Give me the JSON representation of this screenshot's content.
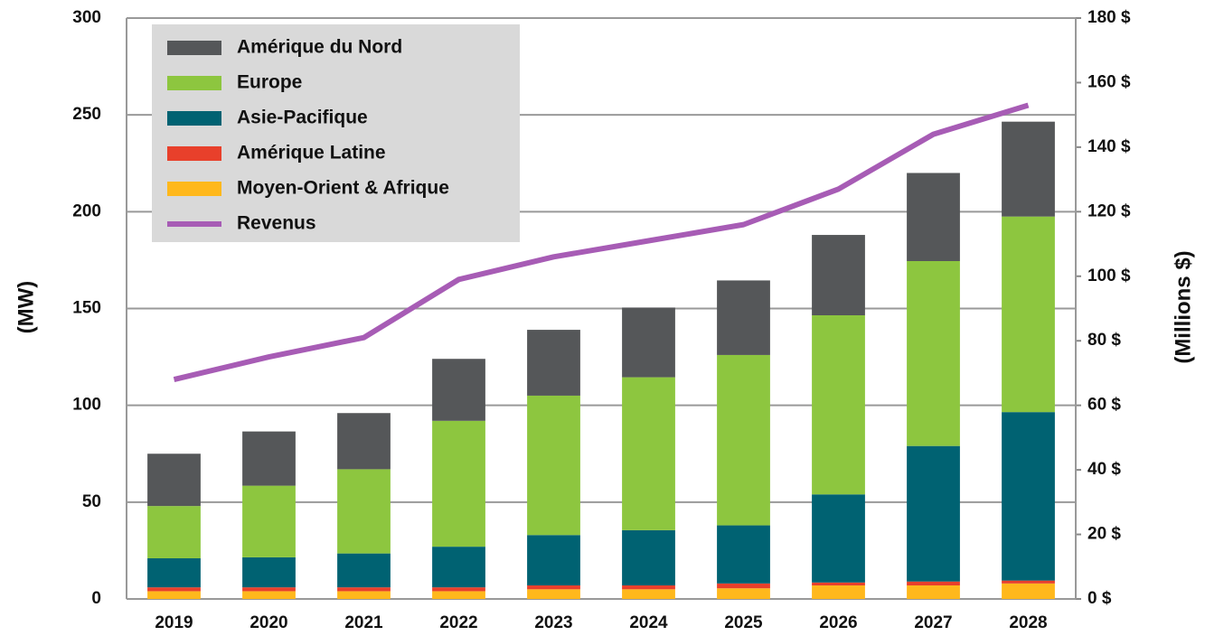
{
  "chart_data": {
    "type": "stacked-bar-line",
    "categories": [
      "2019",
      "2020",
      "2021",
      "2022",
      "2023",
      "2024",
      "2025",
      "2026",
      "2027",
      "2028"
    ],
    "series": [
      {
        "name": "Amérique du Nord",
        "color": "#555759",
        "values": [
          27,
          28,
          29,
          32,
          34,
          36,
          38.5,
          41.5,
          45.5,
          49
        ]
      },
      {
        "name": "Europe",
        "color": "#8dc63f",
        "values": [
          27,
          37,
          43.5,
          65,
          72,
          79,
          88,
          92.5,
          95.5,
          101
        ]
      },
      {
        "name": "Asie-Pacifique",
        "color": "#006272",
        "values": [
          15,
          15.5,
          17.5,
          21,
          26,
          28.5,
          30,
          45.5,
          70,
          87
        ]
      },
      {
        "name": "Amérique Latine",
        "color": "#e8402b",
        "values": [
          2,
          2,
          2,
          2,
          2,
          2,
          2.5,
          1.5,
          2,
          1.5
        ]
      },
      {
        "name": "Moyen-Orient & Afrique",
        "color": "#ffb81c",
        "values": [
          4,
          4,
          4,
          4,
          5,
          5,
          5.5,
          7,
          7,
          8
        ]
      },
      {
        "name": "Revenus",
        "color": "#a75cb5",
        "axis": "y2",
        "values": [
          68,
          75,
          81,
          99,
          106,
          111,
          116,
          127,
          144,
          153
        ]
      }
    ],
    "ylabel": "(MW)",
    "y2label": "(Millions $)",
    "ylim": [
      0,
      300
    ],
    "yticks": [
      0,
      50,
      100,
      150,
      200,
      250,
      300
    ],
    "y2lim": [
      0,
      180
    ],
    "y2ticks": [
      {
        "value": 0,
        "label": "0 $"
      },
      {
        "value": 20,
        "label": "20 $"
      },
      {
        "value": 40,
        "label": "40 $"
      },
      {
        "value": 60,
        "label": "60 $"
      },
      {
        "value": 80,
        "label": "80 $"
      },
      {
        "value": 100,
        "label": "100 $"
      },
      {
        "value": 120,
        "label": "120 $"
      },
      {
        "value": 140,
        "label": "140 $"
      },
      {
        "value": 160,
        "label": "160 $"
      },
      {
        "value": 180,
        "label": "180 $"
      }
    ],
    "grid": true,
    "legend": "upper left"
  }
}
